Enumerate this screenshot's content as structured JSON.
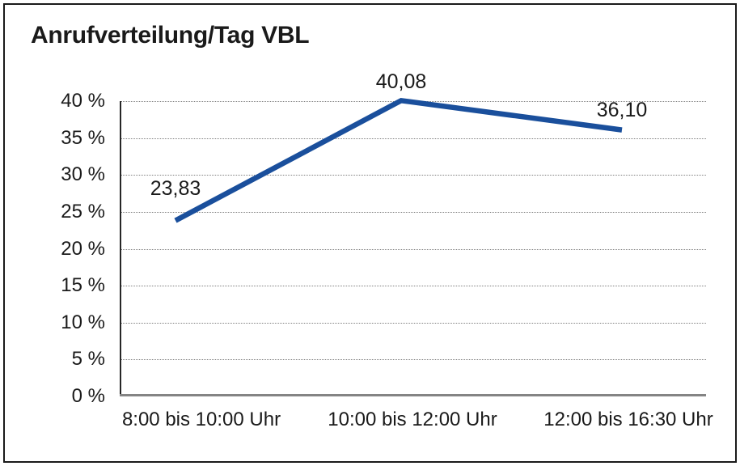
{
  "header": {
    "title": "Anrufverteilung/Tag VBL"
  },
  "chart_data": {
    "type": "line",
    "title": "Anrufverteilung/Tag VBL",
    "categories": [
      "8:00 bis 10:00 Uhr",
      "10:00 bis 12:00 Uhr",
      "12:00 bis 16:30 Uhr"
    ],
    "series": [
      {
        "name": "Anrufverteilung",
        "values": [
          23.83,
          40.08,
          36.1
        ],
        "value_labels": [
          "23,83",
          "40,08",
          "36,10"
        ]
      }
    ],
    "xlabel": "",
    "ylabel": "",
    "ylim": [
      0,
      40
    ],
    "ytick_step": 5,
    "ytick_labels": [
      "0 %",
      "5 %",
      "10 %",
      "15 %",
      "20 %",
      "25 %",
      "30 %",
      "35 %",
      "40 %"
    ],
    "grid": "horizontal-dotted",
    "legend_position": "none",
    "colors": {
      "line": "#1A4F9C",
      "grid": "#808080",
      "axis": "#262626",
      "baseline": "#848484",
      "text": "#1a1a1a",
      "border": "#1a1a1a",
      "background": "#ffffff"
    }
  }
}
